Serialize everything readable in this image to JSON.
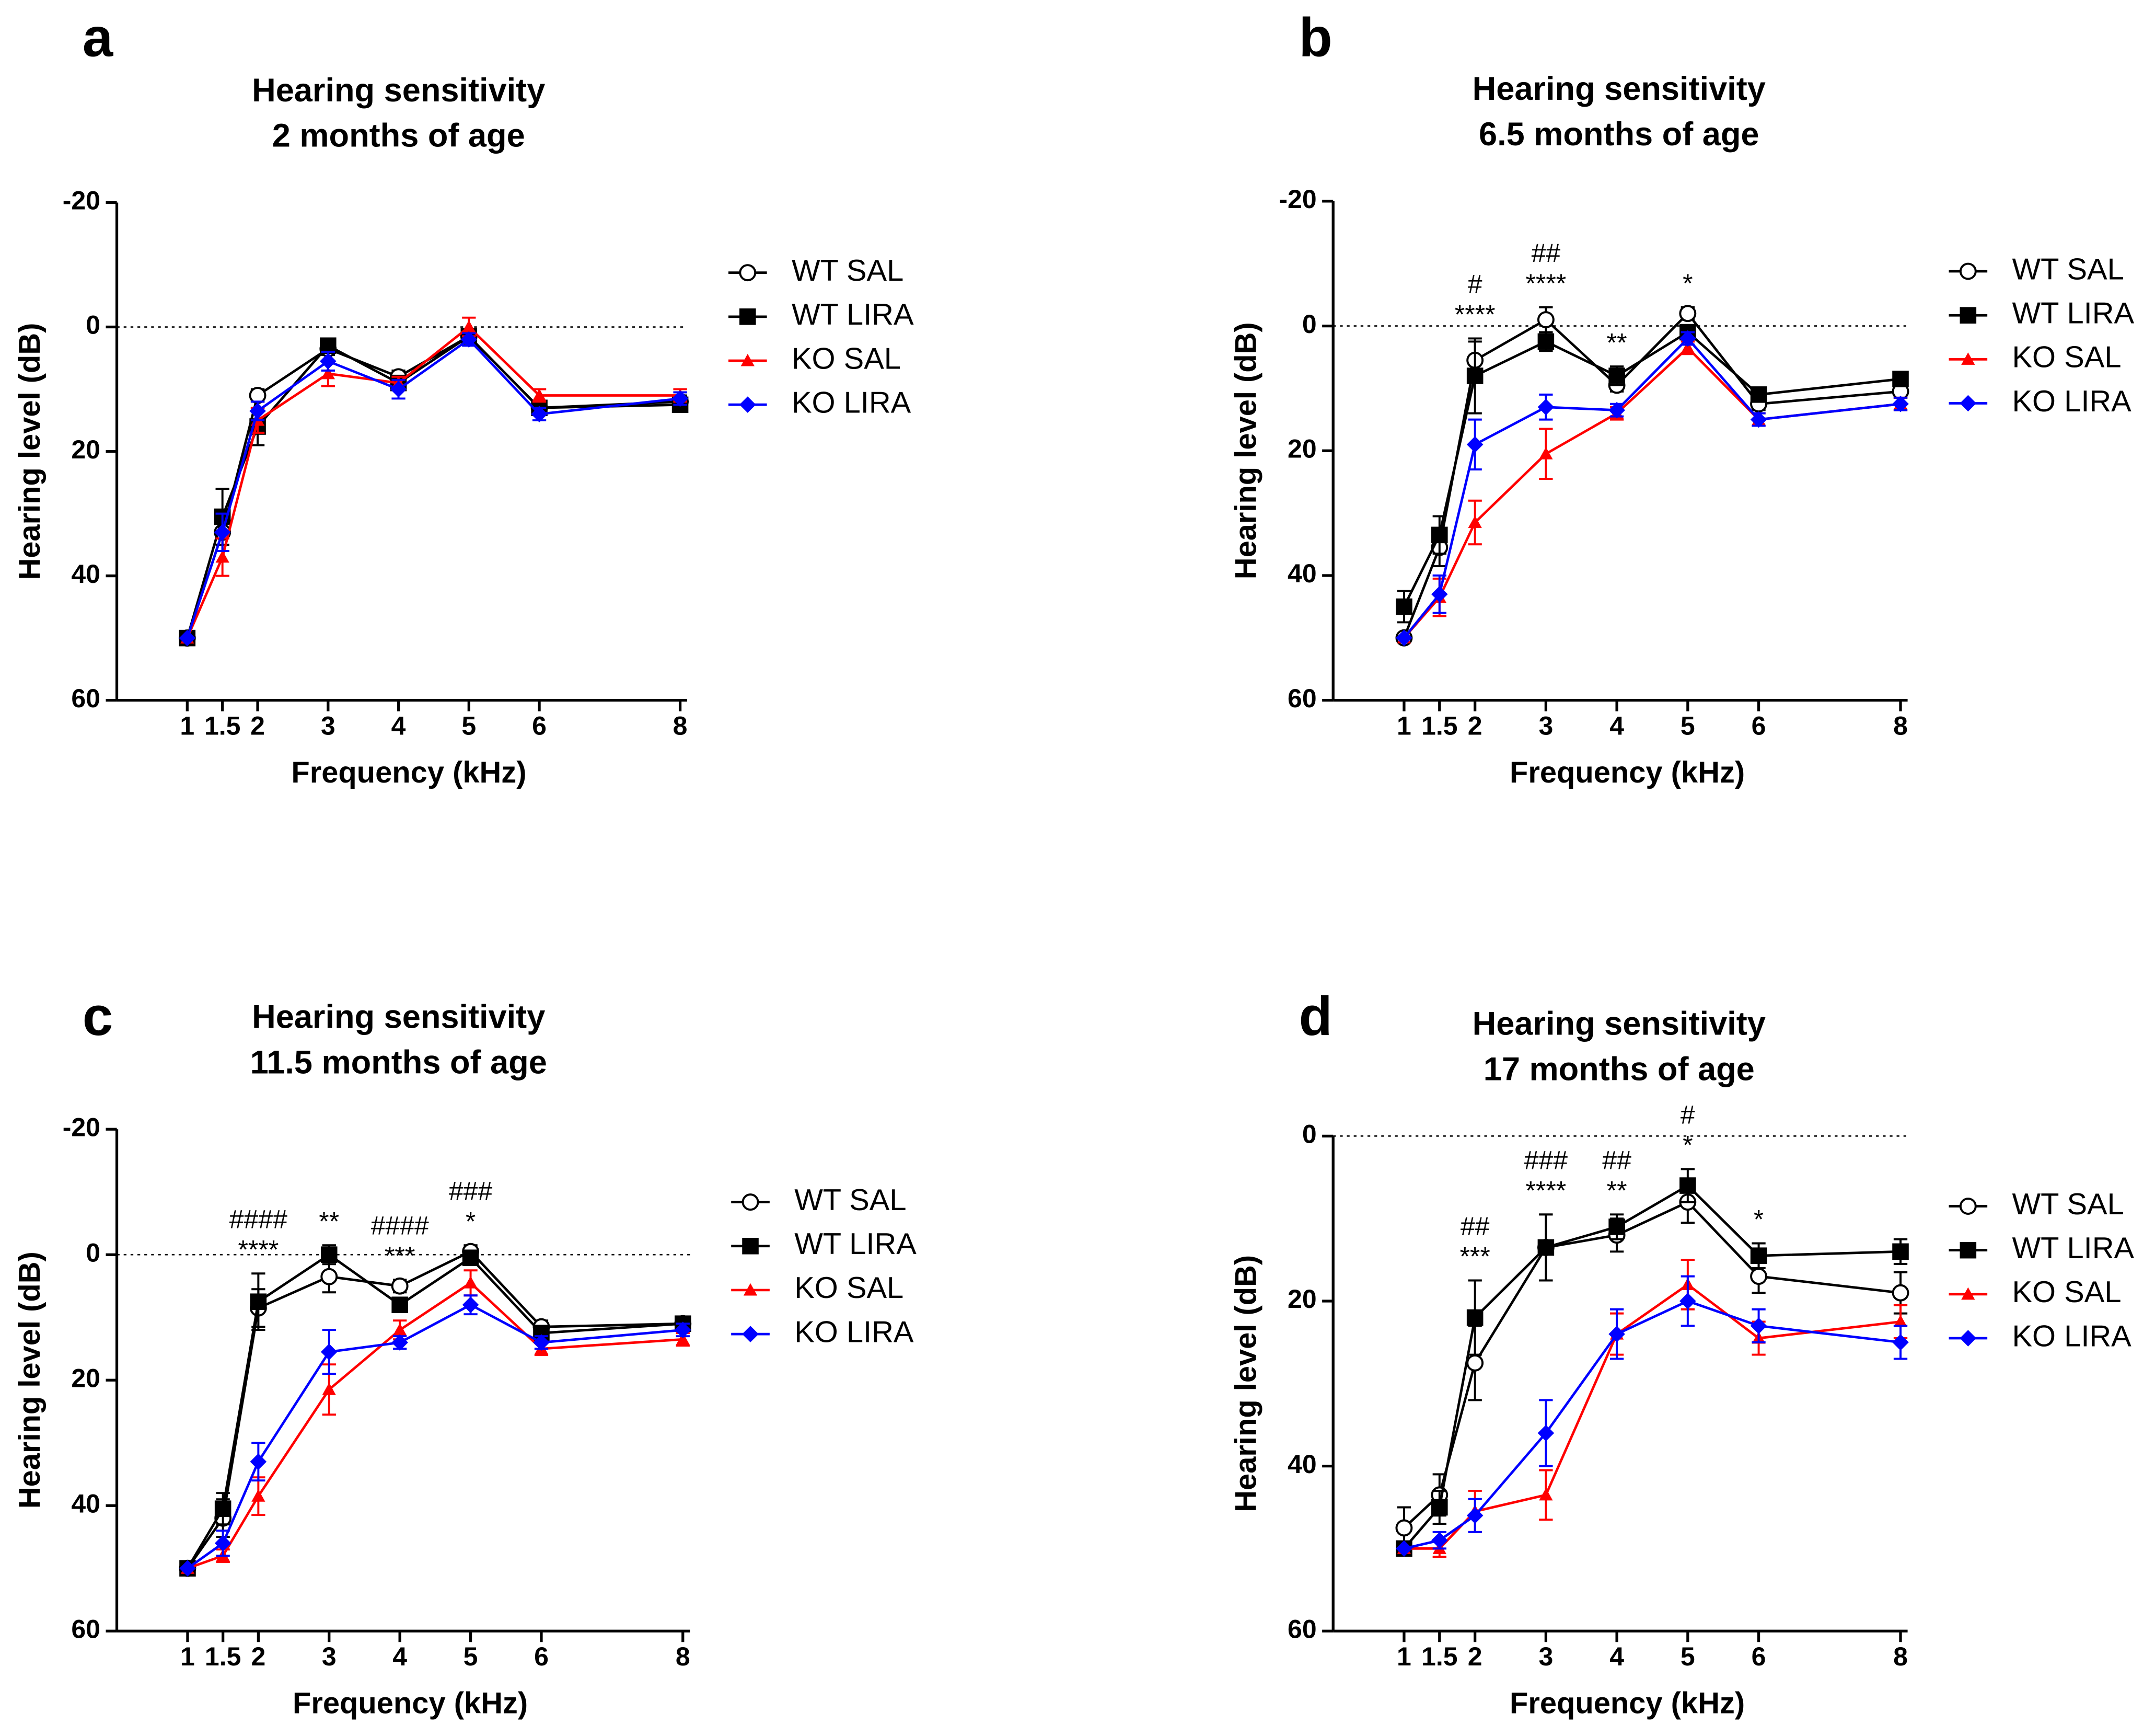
{
  "chart_data": [
    {
      "type": "line",
      "label": "a",
      "title": [
        "Hearing sensitivity",
        "2 months of age"
      ],
      "x_label": "Frequency (kHz)",
      "y_label": "Hearing level (dB)",
      "x": [
        1,
        1.5,
        2,
        3,
        4,
        5,
        6,
        8
      ],
      "xlim": [
        0,
        8.1
      ],
      "xticks": [
        1,
        1.5,
        2,
        3,
        4,
        5,
        6,
        8
      ],
      "ylim": [
        -20,
        60
      ],
      "y_inverted": true,
      "yticks": [
        -20,
        0,
        20,
        40,
        60
      ],
      "reference_line": 0,
      "series": [
        {
          "name": "WT SAL",
          "color": "#000000",
          "marker": "circle-open",
          "values": [
            50,
            33,
            11,
            3.5,
            8,
            1.5,
            13,
            12
          ],
          "errors": [
            0,
            3,
            1,
            1,
            1,
            1,
            1,
            1
          ]
        },
        {
          "name": "WT LIRA",
          "color": "#000000",
          "marker": "square",
          "values": [
            50,
            30.5,
            16,
            3,
            9,
            1.5,
            13,
            12.5
          ],
          "errors": [
            0,
            4.5,
            3,
            1,
            1,
            1,
            1,
            1
          ]
        },
        {
          "name": "KO SAL",
          "color": "#ff0000",
          "marker": "triangle",
          "values": [
            50,
            37,
            15,
            7.5,
            9,
            0,
            11,
            11
          ],
          "errors": [
            0,
            3,
            2,
            2,
            1,
            1.5,
            1,
            1
          ]
        },
        {
          "name": "KO LIRA",
          "color": "#0000ff",
          "marker": "diamond",
          "values": [
            50,
            33,
            13.5,
            5.5,
            10,
            2,
            14,
            11.5
          ],
          "errors": [
            0,
            3,
            1.5,
            1.5,
            1.5,
            1,
            1,
            1
          ]
        }
      ],
      "annotations": []
    },
    {
      "type": "line",
      "label": "b",
      "title": [
        "Hearing sensitivity",
        "6.5 months of age"
      ],
      "x_label": "Frequency (kHz)",
      "y_label": "Hearing level (dB)",
      "x": [
        1,
        1.5,
        2,
        3,
        4,
        5,
        6,
        8
      ],
      "xlim": [
        0,
        8.1
      ],
      "xticks": [
        1,
        1.5,
        2,
        3,
        4,
        5,
        6,
        8
      ],
      "ylim": [
        -20,
        60
      ],
      "y_inverted": true,
      "yticks": [
        -20,
        0,
        20,
        40,
        60
      ],
      "reference_line": 0,
      "series": [
        {
          "name": "WT SAL",
          "color": "#000000",
          "marker": "circle-open",
          "values": [
            50,
            35.5,
            5.5,
            -1,
            9.5,
            -2,
            12.5,
            10.5
          ],
          "errors": [
            0,
            3,
            3,
            2,
            1,
            1,
            1,
            1
          ]
        },
        {
          "name": "WT LIRA",
          "color": "#000000",
          "marker": "square",
          "values": [
            45,
            33.5,
            8,
            2.5,
            8,
            1,
            11,
            8.5
          ],
          "errors": [
            2.5,
            3,
            6,
            1.5,
            1.5,
            1,
            1,
            1
          ]
        },
        {
          "name": "KO SAL",
          "color": "#ff0000",
          "marker": "triangle",
          "values": [
            50,
            43.5,
            31.5,
            20.5,
            14,
            3.5,
            15,
            12.5
          ],
          "errors": [
            0,
            3,
            3.5,
            4,
            1,
            1,
            1,
            1
          ]
        },
        {
          "name": "KO LIRA",
          "color": "#0000ff",
          "marker": "diamond",
          "values": [
            50,
            43,
            19,
            13,
            13.5,
            2,
            15,
            12.5
          ],
          "errors": [
            0,
            3,
            4,
            2,
            1,
            1,
            1,
            1
          ]
        }
      ],
      "annotations": [
        {
          "x": 2,
          "lines": [
            "#",
            "****"
          ]
        },
        {
          "x": 3,
          "lines": [
            "##",
            "****"
          ]
        },
        {
          "x": 4,
          "lines": [
            "**"
          ]
        },
        {
          "x": 5,
          "lines": [
            "*"
          ]
        }
      ]
    },
    {
      "type": "line",
      "label": "c",
      "title": [
        "Hearing sensitivity",
        "11.5 months of age"
      ],
      "x_label": "Frequency (kHz)",
      "y_label": "Hearing level (dB)",
      "x": [
        1,
        1.5,
        2,
        3,
        4,
        5,
        6,
        8
      ],
      "xlim": [
        0,
        8.1
      ],
      "xticks": [
        1,
        1.5,
        2,
        3,
        4,
        5,
        6,
        8
      ],
      "ylim": [
        -20,
        60
      ],
      "y_inverted": true,
      "yticks": [
        -20,
        0,
        20,
        40,
        60
      ],
      "reference_line": 0,
      "series": [
        {
          "name": "WT SAL",
          "color": "#000000",
          "marker": "circle-open",
          "values": [
            50,
            42,
            8.5,
            3.5,
            5,
            -0.5,
            11.5,
            11
          ],
          "errors": [
            0,
            3,
            3,
            2.5,
            1,
            1,
            1,
            1
          ]
        },
        {
          "name": "WT LIRA",
          "color": "#000000",
          "marker": "square",
          "values": [
            50,
            40.5,
            7.5,
            0,
            8,
            0.5,
            12.5,
            11
          ],
          "errors": [
            0,
            2.5,
            4.5,
            1.5,
            1,
            1,
            1,
            1
          ]
        },
        {
          "name": "KO SAL",
          "color": "#ff0000",
          "marker": "triangle",
          "values": [
            50,
            48,
            38.5,
            21.5,
            12,
            4.5,
            15,
            13.5
          ],
          "errors": [
            0,
            1,
            3,
            4,
            1.5,
            2,
            1,
            1
          ]
        },
        {
          "name": "KO LIRA",
          "color": "#0000ff",
          "marker": "diamond",
          "values": [
            50,
            46,
            33,
            15.5,
            14,
            8,
            14,
            12
          ],
          "errors": [
            0,
            2,
            3,
            3.5,
            1,
            1.5,
            1,
            1
          ]
        }
      ],
      "annotations": [
        {
          "x": 2,
          "lines": [
            "####",
            "****"
          ]
        },
        {
          "x": 3,
          "lines": [
            "**"
          ]
        },
        {
          "x": 4,
          "lines": [
            "####",
            "***"
          ]
        },
        {
          "x": 5,
          "lines": [
            "###",
            "*"
          ]
        }
      ]
    },
    {
      "type": "line",
      "label": "d",
      "title": [
        "Hearing sensitivity",
        "17 months of age"
      ],
      "x_label": "Frequency (kHz)",
      "y_label": "Hearing level (dB)",
      "x": [
        1,
        1.5,
        2,
        3,
        4,
        5,
        6,
        8
      ],
      "xlim": [
        0,
        8.1
      ],
      "xticks": [
        1,
        1.5,
        2,
        3,
        4,
        5,
        6,
        8
      ],
      "ylim": [
        0,
        60
      ],
      "y_inverted": true,
      "yticks": [
        0,
        20,
        40,
        60
      ],
      "reference_line": 0,
      "series": [
        {
          "name": "WT SAL",
          "color": "#000000",
          "marker": "circle-open",
          "values": [
            47.5,
            43.5,
            27.5,
            13.5,
            12,
            8,
            17,
            19
          ],
          "errors": [
            2.5,
            2.5,
            4.5,
            4,
            2,
            2.5,
            2,
            2.5
          ]
        },
        {
          "name": "WT LIRA",
          "color": "#000000",
          "marker": "square",
          "values": [
            50,
            45,
            22,
            13.5,
            11,
            6,
            14.5,
            14
          ],
          "errors": [
            0,
            2,
            4.5,
            4,
            1.5,
            2,
            1.5,
            1.5
          ]
        },
        {
          "name": "KO SAL",
          "color": "#ff0000",
          "marker": "triangle",
          "values": [
            50,
            50,
            45.5,
            43.5,
            24,
            18,
            24.5,
            22.5
          ],
          "errors": [
            0,
            1,
            2.5,
            3,
            2.5,
            3,
            2,
            2
          ]
        },
        {
          "name": "KO LIRA",
          "color": "#0000ff",
          "marker": "diamond",
          "values": [
            50,
            49,
            46,
            36,
            24,
            20,
            23,
            25
          ],
          "errors": [
            0,
            1,
            2,
            4,
            3,
            3,
            2,
            2
          ]
        }
      ],
      "annotations": [
        {
          "x": 2,
          "lines": [
            "##",
            "***"
          ]
        },
        {
          "x": 3,
          "lines": [
            "###",
            "****"
          ]
        },
        {
          "x": 4,
          "lines": [
            "##",
            "**"
          ]
        },
        {
          "x": 5,
          "lines": [
            "#",
            "*"
          ]
        },
        {
          "x": 6,
          "lines": [
            "*"
          ]
        }
      ]
    }
  ]
}
